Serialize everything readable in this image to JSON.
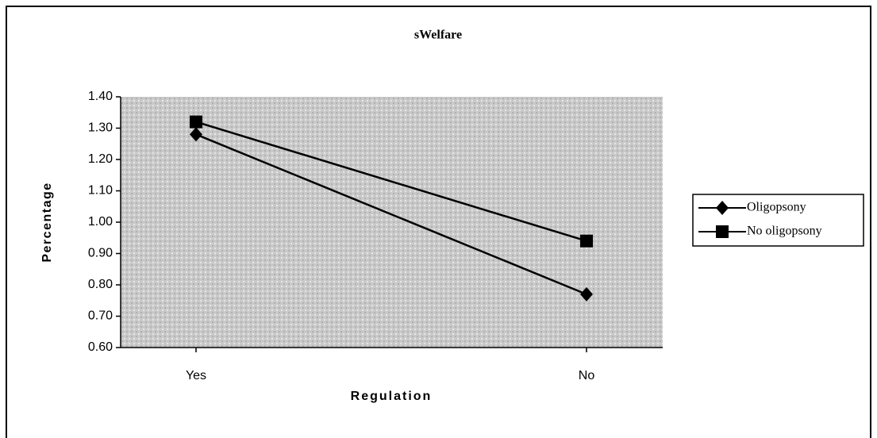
{
  "chart_data": {
    "type": "line",
    "title": "sWelfare",
    "x_label": "Regulation",
    "y_label": "Percentage",
    "categories": [
      "Yes",
      "No"
    ],
    "series": [
      {
        "name": "Oligopsony",
        "color": "#000000",
        "marker": "diamond",
        "values": [
          1.28,
          0.77
        ]
      },
      {
        "name": "No oligopsony",
        "color": "#000000",
        "marker": "square",
        "values": [
          1.32,
          0.94
        ]
      }
    ],
    "ylim": [
      0.6,
      1.4
    ],
    "yticks": [
      {
        "value": 0.6,
        "label": "0.60"
      },
      {
        "value": 0.7,
        "label": "0.70"
      },
      {
        "value": 0.8,
        "label": "0.80"
      },
      {
        "value": 0.9,
        "label": "0.90"
      },
      {
        "value": 1.0,
        "label": "1.00"
      },
      {
        "value": 1.1,
        "label": "1.10"
      },
      {
        "value": 1.2,
        "label": "1.20"
      },
      {
        "value": 1.3,
        "label": "1.30"
      },
      {
        "value": 1.4,
        "label": "1.40"
      }
    ],
    "legend": "right"
  }
}
